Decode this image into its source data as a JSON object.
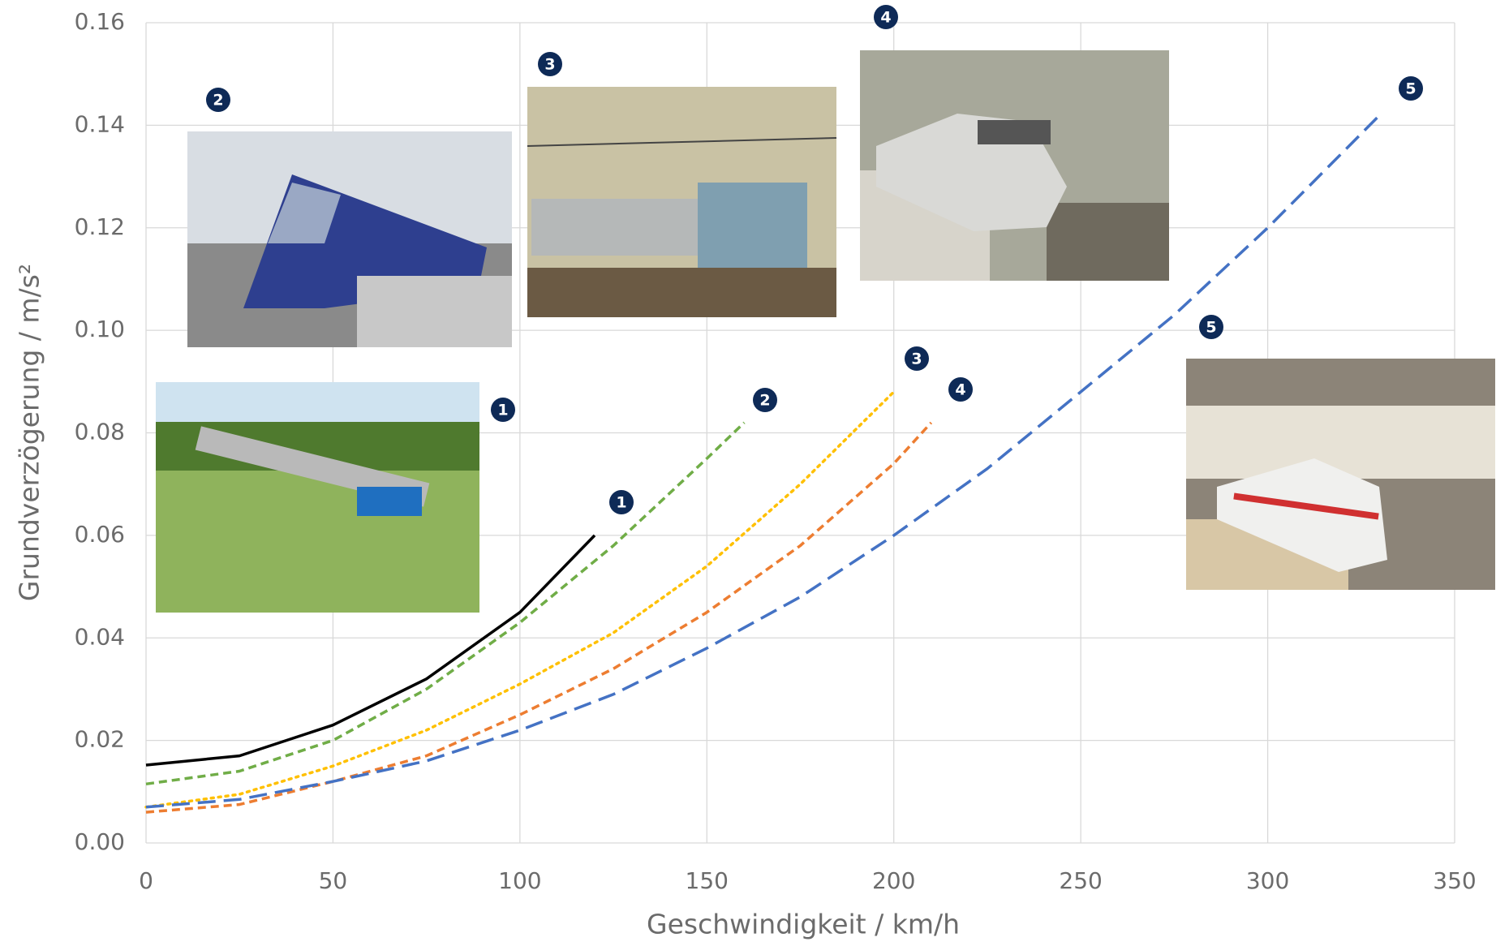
{
  "chart_data": {
    "type": "line",
    "x_label": "Geschwindigkeit  / km/h",
    "y_label": "Grundverzögerung  / m/s²",
    "xlim": [
      0,
      350
    ],
    "xticks": [
      0,
      50,
      100,
      150,
      200,
      250,
      300,
      350
    ],
    "ylim": [
      0,
      0.16
    ],
    "yticks": [
      {
        "value": 0,
        "label": "0.00"
      },
      {
        "value": 0.02,
        "label": "0.02"
      },
      {
        "value": 0.04,
        "label": "0.04"
      },
      {
        "value": 0.06,
        "label": "0.06"
      },
      {
        "value": 0.08,
        "label": "0.08"
      },
      {
        "value": 0.1,
        "label": "0.10"
      },
      {
        "value": 0.12,
        "label": "0.12"
      },
      {
        "value": 0.14,
        "label": "0.14"
      },
      {
        "value": 0.16,
        "label": "0.16"
      }
    ],
    "grid": true,
    "series": [
      {
        "label": "1",
        "color": "#000000",
        "dash": "solid",
        "x": [
          0,
          25,
          50,
          75,
          100,
          120
        ],
        "values": [
          0.0152,
          0.017,
          0.023,
          0.032,
          0.045,
          0.06
        ]
      },
      {
        "label": "2",
        "color": "#70ad47",
        "dash": "dashed",
        "x": [
          0,
          25,
          50,
          75,
          100,
          125,
          150,
          160
        ],
        "values": [
          0.0115,
          0.014,
          0.02,
          0.03,
          0.043,
          0.058,
          0.075,
          0.082
        ]
      },
      {
        "label": "3",
        "color": "#ffc000",
        "dash": "dotted",
        "x": [
          0,
          25,
          50,
          75,
          100,
          125,
          150,
          175,
          200
        ],
        "values": [
          0.007,
          0.0095,
          0.015,
          0.022,
          0.031,
          0.041,
          0.054,
          0.07,
          0.088
        ]
      },
      {
        "label": "4",
        "color": "#ed7d31",
        "dash": "dashed",
        "x": [
          0,
          25,
          50,
          75,
          100,
          125,
          150,
          175,
          200,
          210
        ],
        "values": [
          0.006,
          0.0075,
          0.012,
          0.017,
          0.025,
          0.034,
          0.045,
          0.058,
          0.074,
          0.082
        ]
      },
      {
        "label": "5",
        "color": "#4472c4",
        "dash": "longdash",
        "x": [
          0,
          25,
          50,
          75,
          100,
          125,
          150,
          175,
          200,
          225,
          250,
          275,
          300,
          330
        ],
        "values": [
          0.007,
          0.0085,
          0.012,
          0.016,
          0.022,
          0.029,
          0.038,
          0.048,
          0.06,
          0.073,
          0.088,
          0.103,
          0.12,
          0.142
        ]
      }
    ]
  }
}
